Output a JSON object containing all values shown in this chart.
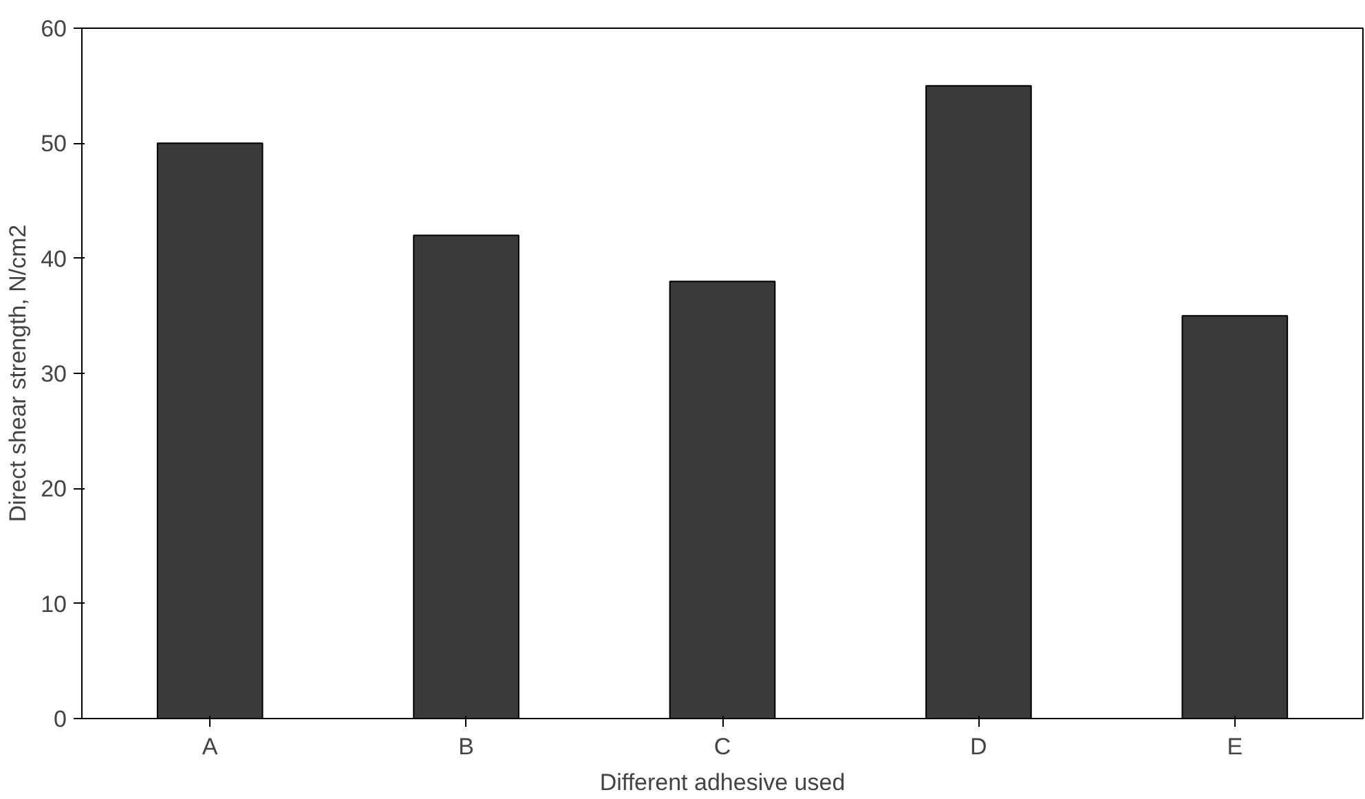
{
  "chart_data": {
    "type": "bar",
    "xlabel": "Different adhesive used",
    "ylabel": "Direct shear strength, N/cm2",
    "categories": [
      "A",
      "B",
      "C",
      "D",
      "E"
    ],
    "values": [
      50,
      42,
      38,
      55,
      35
    ],
    "color": "#3a3a3a",
    "ylim": [
      0,
      60
    ],
    "yticks": [
      0,
      10,
      20,
      30,
      40,
      50,
      60
    ],
    "grid": false
  }
}
